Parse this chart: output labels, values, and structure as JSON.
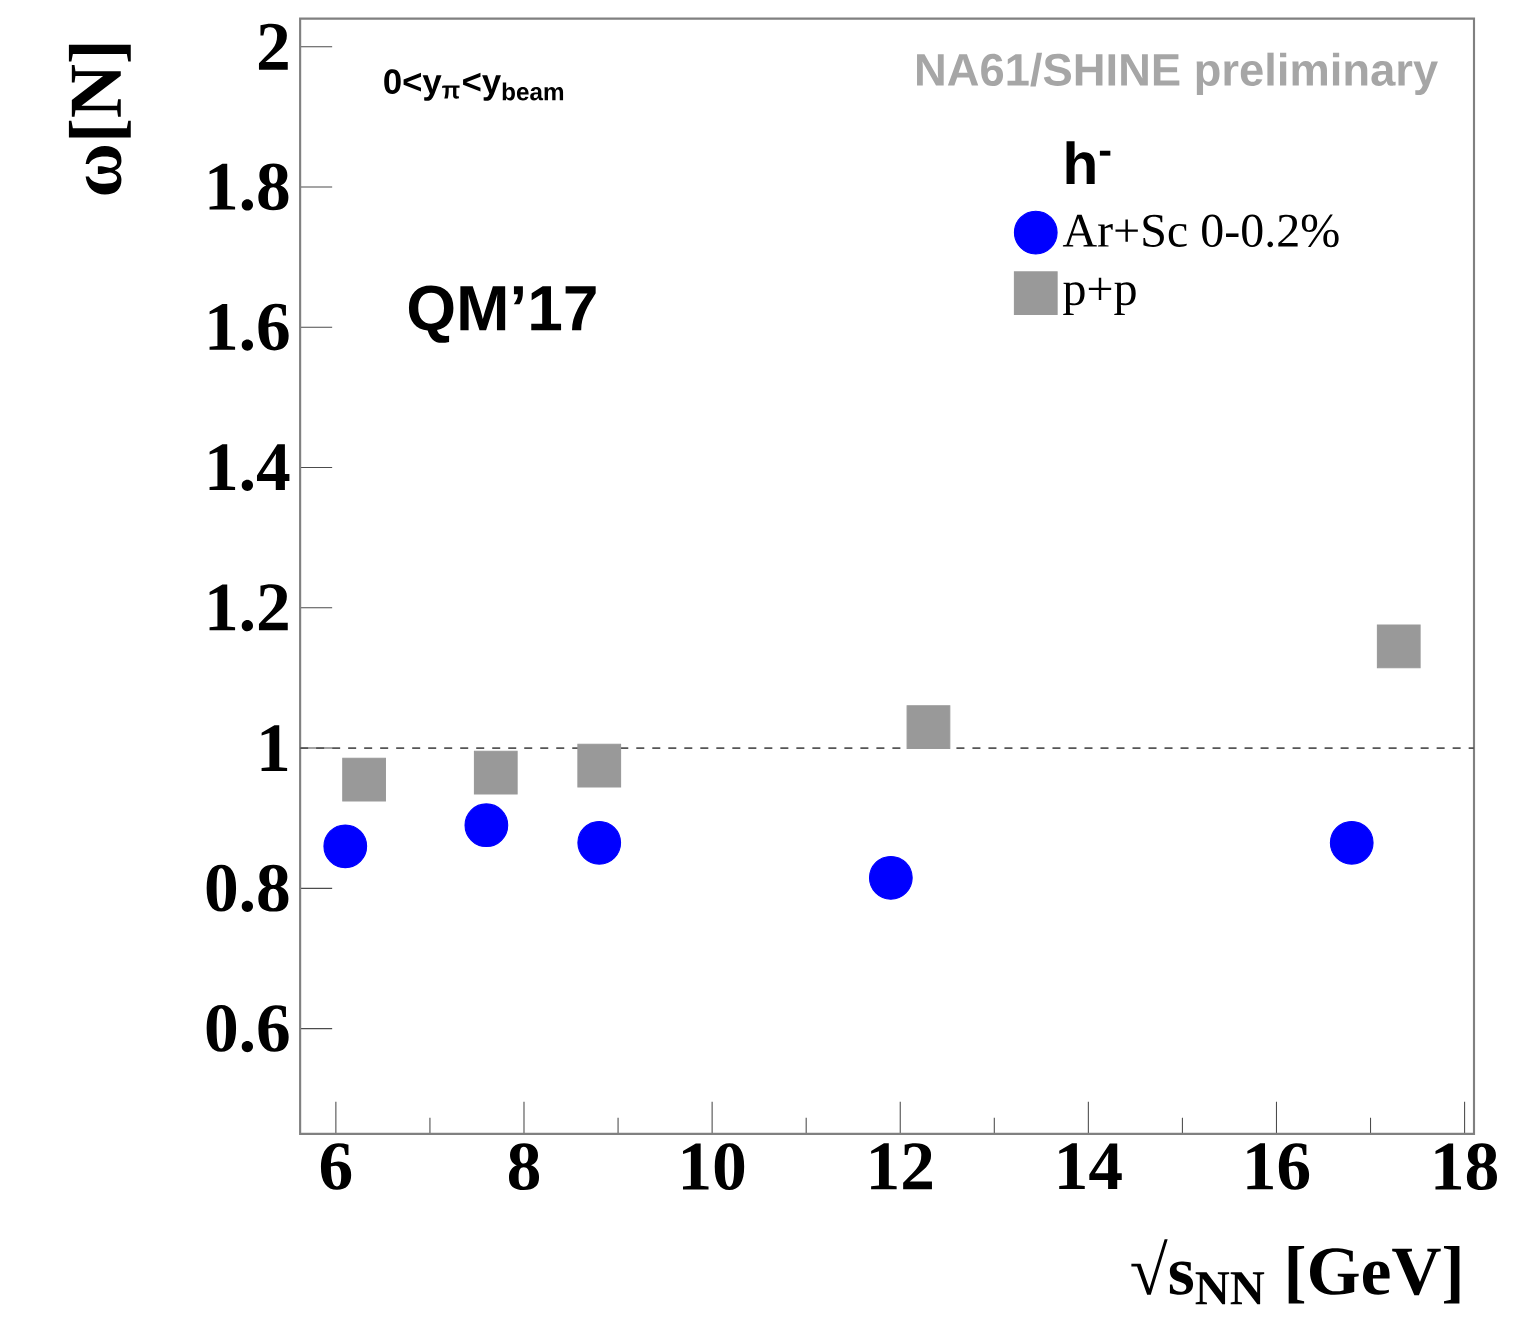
{
  "chart_data": {
    "type": "scatter",
    "xlabel": "√s$_{NN}$ [GeV]",
    "ylabel": "ω[N]",
    "legend_title": "h$^{-}$",
    "annotations": [
      "0<y$_{π}$<y$_{beam}$",
      "NA61/SHINE preliminary",
      "QM’17"
    ],
    "series": [
      {
        "name": "Ar+Sc 0-0.2%",
        "color": "#0000ff",
        "marker": "circle",
        "x": [
          6.1,
          7.6,
          8.8,
          11.9,
          16.8
        ],
        "values": [
          0.86,
          0.89,
          0.865,
          0.815,
          0.865
        ]
      },
      {
        "name": "p+p",
        "color": "#999999",
        "marker": "square",
        "x": [
          6.3,
          7.7,
          8.8,
          12.3,
          17.3
        ],
        "values": [
          0.955,
          0.965,
          0.975,
          1.03,
          1.145
        ]
      }
    ],
    "xlim": [
      5.62,
      18.1
    ],
    "ylim": [
      0.45,
      2.04
    ],
    "xticks": [
      6,
      8,
      10,
      12,
      14,
      16,
      18
    ],
    "yticks": [
      0.6,
      0.8,
      1,
      1.2,
      1.4,
      1.6,
      1.8,
      2
    ],
    "ref_lines": [
      {
        "axis": "y",
        "value": 1,
        "line_style": "dashed",
        "color": "#555555"
      }
    ],
    "grid": false,
    "legend": "top right"
  }
}
